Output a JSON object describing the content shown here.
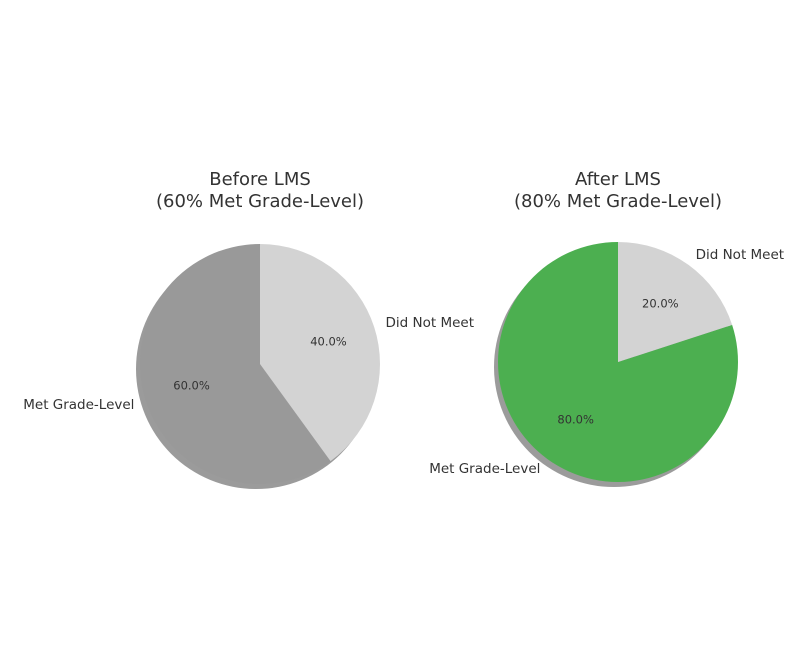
{
  "chart_data": [
    {
      "type": "pie",
      "title": "Before LMS\n(60% Met Grade-Level)",
      "categories": [
        "Met Grade-Level",
        "Did Not Meet"
      ],
      "values": [
        60,
        40
      ],
      "value_labels": [
        "60.0%",
        "40.0%"
      ],
      "colors": [
        "#999999",
        "#d3d3d3"
      ],
      "shadow": true
    },
    {
      "type": "pie",
      "title": "After LMS\n(80% Met Grade-Level)",
      "categories": [
        "Met Grade-Level",
        "Did Not Meet"
      ],
      "values": [
        80,
        20
      ],
      "value_labels": [
        "80.0%",
        "20.0%"
      ],
      "colors": [
        "#4caf50",
        "#d3d3d3"
      ],
      "shadow": true
    }
  ]
}
